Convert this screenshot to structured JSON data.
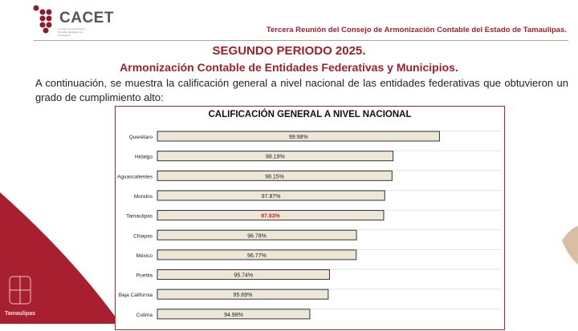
{
  "logo": {
    "name": "CACET",
    "subtitle": "Consejo de Armonización Contable del Estado de Tamaulipas"
  },
  "header": {
    "meeting": "Tercera Reunión del Consejo de Armonización Contable del Estado de Tamaulipas."
  },
  "title": "SEGUNDO PERIODO 2025.",
  "subtitle": "Armonización Contable de Entidades Federativas y Municipios.",
  "intro": "A continuación, se muestra la calificación general a nivel nacional de las entidades federativas que obtuvieron un grado de cumplimiento alto:",
  "crest_label": "Tamaulipas",
  "colors": {
    "brand": "#a01f2d",
    "bar": "#ede7d7",
    "highlight": "#d0202a"
  },
  "chart_data": {
    "type": "bar",
    "orientation": "horizontal",
    "title": "CALIFICACIÓN GENERAL A NIVEL NACIONAL",
    "categories": [
      "Querétaro",
      "Hidalgo",
      "Aguascalientes",
      "Morelos",
      "Tamaulipas",
      "Chiapas",
      "México",
      "Puebla",
      "Baja California",
      "Colima"
    ],
    "values": [
      99.98,
      98.19,
      98.15,
      97.87,
      97.83,
      96.78,
      96.77,
      95.74,
      95.69,
      94.98
    ],
    "labels": [
      "99.98%",
      "98.19%",
      "98.15%",
      "97.87%",
      "97.83%",
      "96.78%",
      "96.77%",
      "95.74%",
      "95.69%",
      "94.98%"
    ],
    "highlight": "Tamaulipas",
    "grid": true
  }
}
